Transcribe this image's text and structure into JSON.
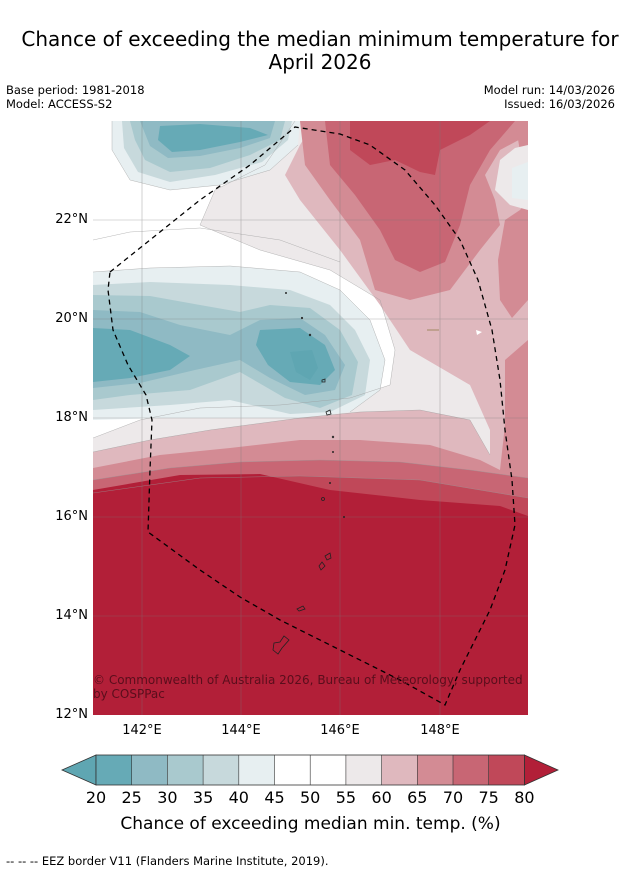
{
  "title": {
    "line1": "Chance of exceeding the median minimum temperature for",
    "line2": "April 2026"
  },
  "meta": {
    "base_period": "Base period: 1981-2018",
    "model": "Model: ACCESS-S2",
    "model_run": "Model run: 14/03/2026",
    "issued": "Issued: 16/03/2026"
  },
  "map": {
    "lat_labels": [
      "22°N",
      "20°N",
      "18°N",
      "16°N",
      "14°N",
      "12°N"
    ],
    "lon_labels": [
      "142°E",
      "144°E",
      "146°E",
      "148°E"
    ],
    "copyright": "© Commonwealth of Australia 2026, Bureau of Meteorology, supported by COSPPac",
    "colors": {
      "c20": "#5fa6b2",
      "c25": "#66aab6",
      "c30": "#8fbac4",
      "c35": "#a9c9ce",
      "c40": "#c7d9dc",
      "c45": "#e7eff1",
      "c50": "#ffffff",
      "c55": "#ffffff",
      "c60": "#ede9ea",
      "c65": "#dfb8be",
      "c70": "#d38b94",
      "c75": "#c86674",
      "c80": "#c04859",
      "c85": "#b21f38"
    }
  },
  "colorbar": {
    "ticks": [
      "20",
      "25",
      "30",
      "35",
      "40",
      "45",
      "50",
      "55",
      "60",
      "65",
      "70",
      "75",
      "80"
    ],
    "label": "Chance of exceeding median min. temp. (%)"
  },
  "footer": "--  --  -- EEZ border V11 (Flanders Marine Institute, 2019)."
}
